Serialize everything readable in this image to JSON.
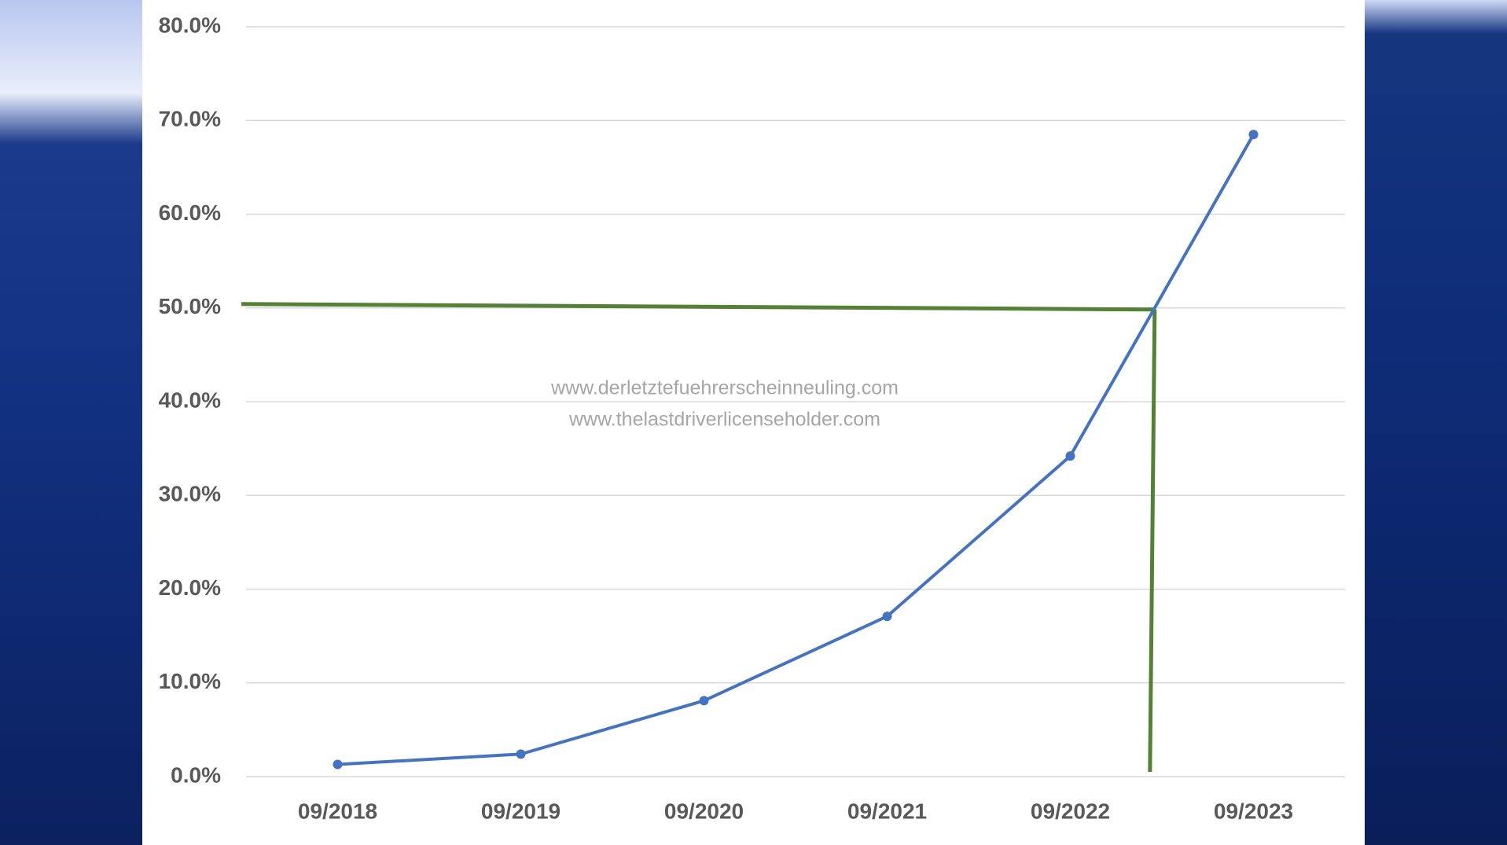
{
  "chart_data": {
    "type": "line",
    "categories": [
      "09/2018",
      "09/2019",
      "09/2020",
      "09/2021",
      "09/2022",
      "09/2023"
    ],
    "series": [
      {
        "color": "#4472c4",
        "values": [
          1.3,
          2.4,
          8.1,
          17.1,
          34.2,
          68.5
        ]
      }
    ],
    "ylim": [
      0,
      80
    ],
    "yticks": [
      {
        "value": 0,
        "label": "0.0%"
      },
      {
        "value": 10,
        "label": "10.0%"
      },
      {
        "value": 20,
        "label": "20.0%"
      },
      {
        "value": 30,
        "label": "30.0%"
      },
      {
        "value": 40,
        "label": "40.0%"
      },
      {
        "value": 50,
        "label": "50.0%"
      },
      {
        "value": 60,
        "label": "60.0%"
      },
      {
        "value": 70,
        "label": "70.0%"
      },
      {
        "value": 80,
        "label": "80.0%"
      }
    ],
    "grid": true,
    "reference_line": {
      "value": 50,
      "color": "#548235"
    },
    "annotations": [
      "www.derletztefuehrerscheinneuling.com",
      "www.thelastdriverlicenseholder.com"
    ]
  }
}
